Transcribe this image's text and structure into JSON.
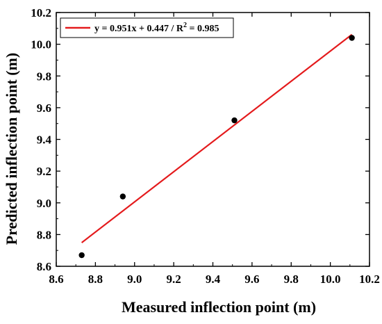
{
  "chart_data": {
    "type": "scatter",
    "xlabel": "Measured inflection point (m)",
    "ylabel": "Predicted inflection point (m)",
    "xlim": [
      8.6,
      10.2
    ],
    "ylim": [
      8.6,
      10.2
    ],
    "xticks": [
      "8.6",
      "8.8",
      "9.0",
      "9.2",
      "9.4",
      "9.6",
      "9.8",
      "10.0",
      "10.2"
    ],
    "yticks": [
      "8.6",
      "8.8",
      "9.0",
      "9.2",
      "9.4",
      "9.6",
      "9.8",
      "10.0",
      "10.2"
    ],
    "points": [
      {
        "x": 8.73,
        "y": 8.67
      },
      {
        "x": 8.94,
        "y": 9.04
      },
      {
        "x": 9.51,
        "y": 9.52
      },
      {
        "x": 10.11,
        "y": 10.04
      }
    ],
    "fit": {
      "slope": 0.951,
      "intercept": 0.447,
      "x_range": [
        8.73,
        10.11
      ],
      "color": "#e41a1c"
    },
    "legend": {
      "label_prefix": "y = 0.951x + 0.447 / R",
      "label_sup": "2",
      "label_suffix": " = 0.985",
      "position": "top-left"
    },
    "point_color": "#000000",
    "grid": false
  }
}
